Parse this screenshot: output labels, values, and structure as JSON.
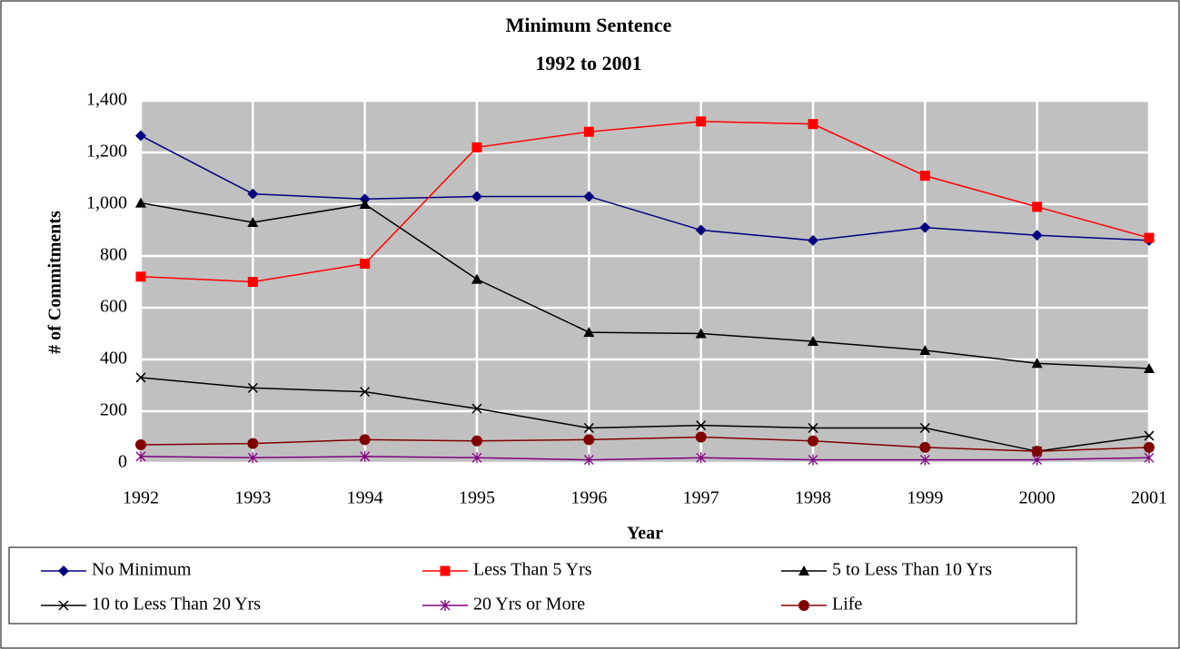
{
  "chart_data": {
    "type": "line",
    "title": "Minimum Sentence",
    "subtitle": "1992 to 2001",
    "x_label": "Year",
    "y_label": "# of Commitments",
    "categories": [
      "1992",
      "1993",
      "1994",
      "1995",
      "1996",
      "1997",
      "1998",
      "1999",
      "2000",
      "2001"
    ],
    "ylim": [
      0,
      1400
    ],
    "yticks": [
      0,
      200,
      400,
      600,
      800,
      {
        "value": 1000,
        "label": "1,000"
      },
      {
        "value": 1200,
        "label": "1,200"
      },
      {
        "value": 1400,
        "label": "1,400"
      }
    ],
    "grid": true,
    "legend": "bottom",
    "series": [
      {
        "name": "No Minimum",
        "color": "#000080",
        "marker": "diamond",
        "values": [
          1265,
          1040,
          1020,
          1030,
          1030,
          900,
          860,
          910,
          880,
          860
        ]
      },
      {
        "name": "Less Than 5 Yrs",
        "color": "#ff0000",
        "marker": "square",
        "values": [
          720,
          700,
          770,
          1220,
          1280,
          1320,
          1310,
          1110,
          990,
          870
        ]
      },
      {
        "name": "5 to Less Than 10 Yrs",
        "color": "#000000",
        "marker": "triangle",
        "values": [
          1005,
          930,
          1000,
          710,
          505,
          500,
          470,
          435,
          385,
          365
        ]
      },
      {
        "name": "10 to Less Than 20 Yrs",
        "color": "#000000",
        "marker": "x",
        "values": [
          330,
          290,
          275,
          210,
          135,
          145,
          135,
          135,
          45,
          105
        ]
      },
      {
        "name": "20 Yrs or More",
        "color": "#800080",
        "marker": "asterisk",
        "values": [
          25,
          20,
          25,
          20,
          12,
          20,
          12,
          12,
          12,
          20
        ]
      },
      {
        "name": "Life",
        "color": "#800000",
        "marker": "circle",
        "values": [
          70,
          75,
          90,
          85,
          90,
          100,
          85,
          60,
          45,
          60
        ]
      }
    ]
  }
}
